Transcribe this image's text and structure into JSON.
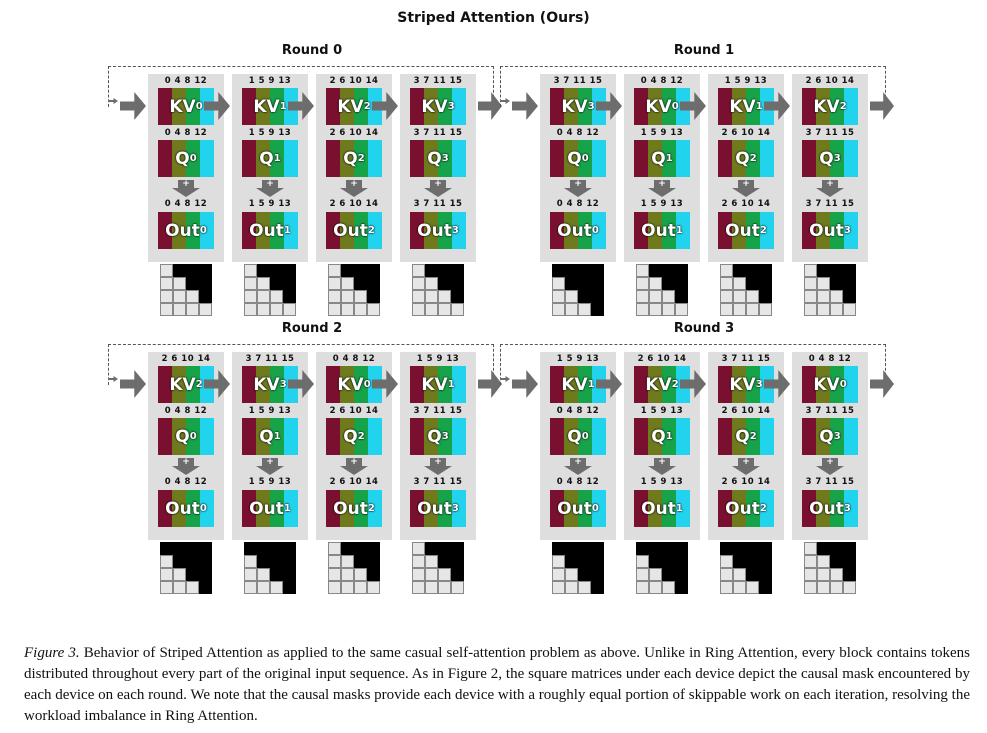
{
  "title": "Striped Attention (Ours)",
  "colors": {
    "dark_red": "#7a1030",
    "olive": "#6e7a1c",
    "green": "#16a34a",
    "cyan": "#22d3ee",
    "device_bg": "#dedede",
    "arrow": "#6d6d6d"
  },
  "rounds": [
    {
      "title": "Round 0",
      "devices": [
        {
          "kv_tokens": "0 4 8 12",
          "kv_index": "0",
          "q_tokens": "0 4 8 12",
          "q_index": "0",
          "out_tokens": "0 4 8 12",
          "out_index": "0",
          "mask": [
            [
              0,
              1,
              1,
              1
            ],
            [
              0,
              0,
              1,
              1
            ],
            [
              0,
              0,
              0,
              1
            ],
            [
              0,
              0,
              0,
              0
            ]
          ]
        },
        {
          "kv_tokens": "1 5 9 13",
          "kv_index": "1",
          "q_tokens": "1 5 9 13",
          "q_index": "1",
          "out_tokens": "1 5 9 13",
          "out_index": "1",
          "mask": [
            [
              0,
              1,
              1,
              1
            ],
            [
              0,
              0,
              1,
              1
            ],
            [
              0,
              0,
              0,
              1
            ],
            [
              0,
              0,
              0,
              0
            ]
          ]
        },
        {
          "kv_tokens": "2 6 10 14",
          "kv_index": "2",
          "q_tokens": "2 6 10 14",
          "q_index": "2",
          "out_tokens": "2 6 10 14",
          "out_index": "2",
          "mask": [
            [
              0,
              1,
              1,
              1
            ],
            [
              0,
              0,
              1,
              1
            ],
            [
              0,
              0,
              0,
              1
            ],
            [
              0,
              0,
              0,
              0
            ]
          ]
        },
        {
          "kv_tokens": "3 7 11 15",
          "kv_index": "3",
          "q_tokens": "3 7 11 15",
          "q_index": "3",
          "out_tokens": "3 7 11 15",
          "out_index": "3",
          "mask": [
            [
              0,
              1,
              1,
              1
            ],
            [
              0,
              0,
              1,
              1
            ],
            [
              0,
              0,
              0,
              1
            ],
            [
              0,
              0,
              0,
              0
            ]
          ]
        }
      ]
    },
    {
      "title": "Round 1",
      "devices": [
        {
          "kv_tokens": "3 7 11 15",
          "kv_index": "3",
          "q_tokens": "0 4 8 12",
          "q_index": "0",
          "out_tokens": "0 4 8 12",
          "out_index": "0",
          "mask": [
            [
              1,
              1,
              1,
              1
            ],
            [
              0,
              1,
              1,
              1
            ],
            [
              0,
              0,
              1,
              1
            ],
            [
              0,
              0,
              0,
              1
            ]
          ]
        },
        {
          "kv_tokens": "0 4 8 12",
          "kv_index": "0",
          "q_tokens": "1 5 9 13",
          "q_index": "1",
          "out_tokens": "1 5 9 13",
          "out_index": "1",
          "mask": [
            [
              0,
              1,
              1,
              1
            ],
            [
              0,
              0,
              1,
              1
            ],
            [
              0,
              0,
              0,
              1
            ],
            [
              0,
              0,
              0,
              0
            ]
          ]
        },
        {
          "kv_tokens": "1 5 9 13",
          "kv_index": "1",
          "q_tokens": "2 6 10 14",
          "q_index": "2",
          "out_tokens": "2 6 10 14",
          "out_index": "2",
          "mask": [
            [
              0,
              1,
              1,
              1
            ],
            [
              0,
              0,
              1,
              1
            ],
            [
              0,
              0,
              0,
              1
            ],
            [
              0,
              0,
              0,
              0
            ]
          ]
        },
        {
          "kv_tokens": "2 6 10 14",
          "kv_index": "2",
          "q_tokens": "3 7 11 15",
          "q_index": "3",
          "out_tokens": "3 7 11 15",
          "out_index": "3",
          "mask": [
            [
              0,
              1,
              1,
              1
            ],
            [
              0,
              0,
              1,
              1
            ],
            [
              0,
              0,
              0,
              1
            ],
            [
              0,
              0,
              0,
              0
            ]
          ]
        }
      ]
    },
    {
      "title": "Round 2",
      "devices": [
        {
          "kv_tokens": "2 6 10 14",
          "kv_index": "2",
          "q_tokens": "0 4 8 12",
          "q_index": "0",
          "out_tokens": "0 4 8 12",
          "out_index": "0",
          "mask": [
            [
              1,
              1,
              1,
              1
            ],
            [
              0,
              1,
              1,
              1
            ],
            [
              0,
              0,
              1,
              1
            ],
            [
              0,
              0,
              0,
              1
            ]
          ]
        },
        {
          "kv_tokens": "3 7 11 15",
          "kv_index": "3",
          "q_tokens": "1 5 9 13",
          "q_index": "1",
          "out_tokens": "1 5 9 13",
          "out_index": "1",
          "mask": [
            [
              1,
              1,
              1,
              1
            ],
            [
              0,
              1,
              1,
              1
            ],
            [
              0,
              0,
              1,
              1
            ],
            [
              0,
              0,
              0,
              1
            ]
          ]
        },
        {
          "kv_tokens": "0 4 8 12",
          "kv_index": "0",
          "q_tokens": "2 6 10 14",
          "q_index": "2",
          "out_tokens": "2 6 10 14",
          "out_index": "2",
          "mask": [
            [
              0,
              1,
              1,
              1
            ],
            [
              0,
              0,
              1,
              1
            ],
            [
              0,
              0,
              0,
              1
            ],
            [
              0,
              0,
              0,
              0
            ]
          ]
        },
        {
          "kv_tokens": "1 5 9 13",
          "kv_index": "1",
          "q_tokens": "3 7 11 15",
          "q_index": "3",
          "out_tokens": "3 7 11 15",
          "out_index": "3",
          "mask": [
            [
              0,
              1,
              1,
              1
            ],
            [
              0,
              0,
              1,
              1
            ],
            [
              0,
              0,
              0,
              1
            ],
            [
              0,
              0,
              0,
              0
            ]
          ]
        }
      ]
    },
    {
      "title": "Round 3",
      "devices": [
        {
          "kv_tokens": "1 5 9 13",
          "kv_index": "1",
          "q_tokens": "0 4 8 12",
          "q_index": "0",
          "out_tokens": "0 4 8 12",
          "out_index": "0",
          "mask": [
            [
              1,
              1,
              1,
              1
            ],
            [
              0,
              1,
              1,
              1
            ],
            [
              0,
              0,
              1,
              1
            ],
            [
              0,
              0,
              0,
              1
            ]
          ]
        },
        {
          "kv_tokens": "2 6 10 14",
          "kv_index": "2",
          "q_tokens": "1 5 9 13",
          "q_index": "1",
          "out_tokens": "1 5 9 13",
          "out_index": "1",
          "mask": [
            [
              1,
              1,
              1,
              1
            ],
            [
              0,
              1,
              1,
              1
            ],
            [
              0,
              0,
              1,
              1
            ],
            [
              0,
              0,
              0,
              1
            ]
          ]
        },
        {
          "kv_tokens": "3 7 11 15",
          "kv_index": "3",
          "q_tokens": "2 6 10 14",
          "q_index": "2",
          "out_tokens": "2 6 10 14",
          "out_index": "2",
          "mask": [
            [
              1,
              1,
              1,
              1
            ],
            [
              0,
              1,
              1,
              1
            ],
            [
              0,
              0,
              1,
              1
            ],
            [
              0,
              0,
              0,
              1
            ]
          ]
        },
        {
          "kv_tokens": "0 4 8 12",
          "kv_index": "0",
          "q_tokens": "3 7 11 15",
          "q_index": "3",
          "out_tokens": "3 7 11 15",
          "out_index": "3",
          "mask": [
            [
              0,
              1,
              1,
              1
            ],
            [
              0,
              0,
              1,
              1
            ],
            [
              0,
              0,
              0,
              1
            ],
            [
              0,
              0,
              0,
              0
            ]
          ]
        }
      ]
    }
  ],
  "labels": {
    "kv": "KV",
    "q": "Q",
    "out": "Out",
    "plus": "+"
  },
  "caption": {
    "figure_label": "Figure 3.",
    "text": " Behavior of Striped Attention as applied to the same casual self-attention problem as above. Unlike in Ring Attention, every block contains tokens distributed throughout every part of the original input sequence. As in Figure 2, the square matrices under each device depict the causal mask encountered by each device on each round. We note that the causal masks provide each device with a roughly equal portion of skippable work on each iteration, resolving the workload imbalance in Ring Attention."
  }
}
